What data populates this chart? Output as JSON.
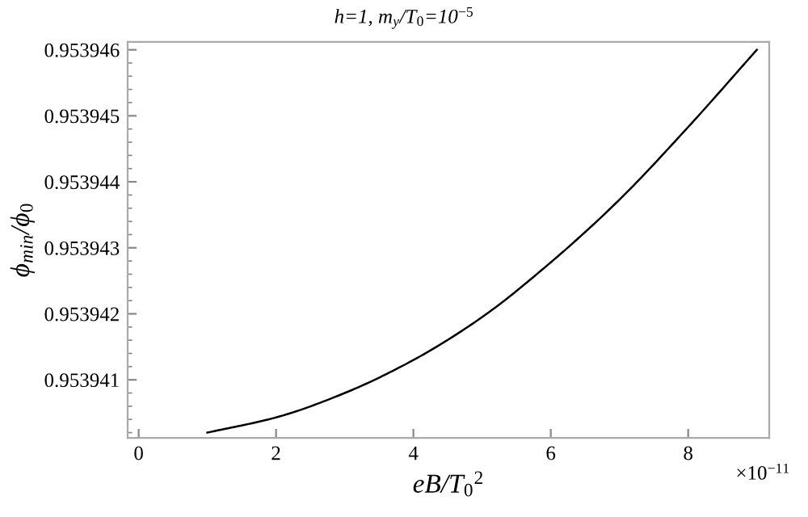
{
  "chart_data": {
    "type": "line",
    "title": "h=1, m$_{y}$/T$_{0}$=10$^{−5}$",
    "xlabel": "eB/T$_{0}$$^{2}$",
    "ylabel": "ϕ$_{min}$/ϕ$_{0}$",
    "x": [
      1,
      2,
      3,
      4,
      5,
      6,
      7,
      8,
      9
    ],
    "series": [
      {
        "color": "#000000",
        "values": [
          0.9539402,
          0.95394043,
          0.9539408,
          0.9539413,
          0.95394195,
          0.95394278,
          0.95394373,
          0.95394483,
          0.953946
        ]
      }
    ],
    "xlim": [
      -0.16,
      9.18
    ],
    "ylim": [
      0.95394012,
      0.95394612
    ],
    "xticks": [
      0,
      2,
      4,
      6,
      8
    ],
    "yticks": [
      0.953941,
      0.953942,
      0.953943,
      0.953944,
      0.953945,
      0.953946
    ],
    "annotations": [
      "×10$^{−11}$"
    ],
    "grid": false,
    "marker": "none",
    "line_style": "solid"
  }
}
